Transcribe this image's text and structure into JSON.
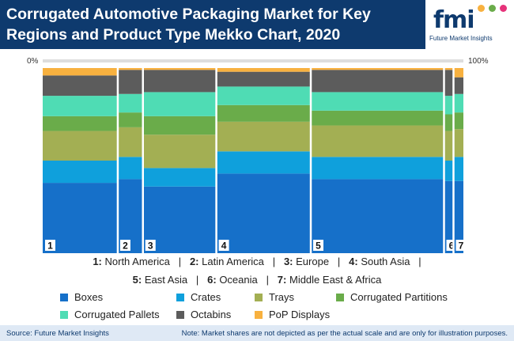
{
  "header": {
    "title": "Corrugated Automotive Packaging Market for Key Regions and Product Type Mekko Chart, 2020",
    "logo_text": "fmi",
    "logo_sub": "Future Market Insights"
  },
  "axis": {
    "left_label": "0%",
    "right_label": "100%"
  },
  "colors": {
    "header_bg": "#0e3a6e",
    "segments": [
      "#1670c9",
      "#0fa0dc",
      "#a3af53",
      "#6aac4a",
      "#4fdcb4",
      "#5c5c5c",
      "#f8b13f"
    ]
  },
  "chart_data": {
    "type": "mekko",
    "title": "Corrugated Automotive Packaging Market for Key Regions and Product Type Mekko Chart, 2020",
    "x_axis_range": [
      0,
      100
    ],
    "y_axis_range": [
      0,
      100
    ],
    "segment_names": [
      "Boxes",
      "Crates",
      "Trays",
      "Corrugated Partitions",
      "Corrugated Pallets",
      "Octabins",
      "PoP Displays"
    ],
    "regions": [
      {
        "number": "1",
        "name": "North America",
        "width": 18.2,
        "values": [
          38,
          12,
          16,
          8,
          11,
          11,
          4
        ]
      },
      {
        "number": "2",
        "name": "Latin America",
        "width": 6.1,
        "values": [
          40,
          12,
          16,
          8,
          10,
          13,
          1
        ]
      },
      {
        "number": "3",
        "name": "Europe",
        "width": 17.8,
        "values": [
          36,
          10,
          18,
          10,
          13,
          12,
          1
        ]
      },
      {
        "number": "4",
        "name": "South Asia",
        "width": 22.9,
        "values": [
          43,
          12,
          16,
          9,
          10,
          8,
          2
        ]
      },
      {
        "number": "5",
        "name": "East Asia",
        "width": 32.3,
        "values": [
          40,
          12,
          17,
          8,
          10,
          12,
          1
        ]
      },
      {
        "number": "6",
        "name": "Oceania",
        "width": 2.3,
        "values": [
          39,
          11,
          16,
          9,
          10,
          14,
          1
        ]
      },
      {
        "number": "7",
        "name": "Middle East & Africa",
        "width": 2.4,
        "values": [
          39,
          13,
          15,
          9,
          10,
          9,
          5
        ]
      }
    ]
  },
  "legend": {
    "regions_line1": [
      {
        "num": "1:",
        "name": "North America"
      },
      {
        "num": "2:",
        "name": "Latin America"
      },
      {
        "num": "3:",
        "name": "Europe"
      },
      {
        "num": "4:",
        "name": "South Asia"
      }
    ],
    "regions_line2": [
      {
        "num": "5:",
        "name": "East Asia"
      },
      {
        "num": "6:",
        "name": "Oceania"
      },
      {
        "num": "7:",
        "name": "Middle East & Africa"
      }
    ],
    "segments": [
      "Boxes",
      "Crates",
      "Trays",
      "Corrugated Partitions",
      "Corrugated Pallets",
      "Octabins",
      "PoP Displays"
    ]
  },
  "footer": {
    "source": "Source: Future Market Insights",
    "note": "Note: Market shares are not depicted as per the actual scale and are only for illustration purposes."
  }
}
